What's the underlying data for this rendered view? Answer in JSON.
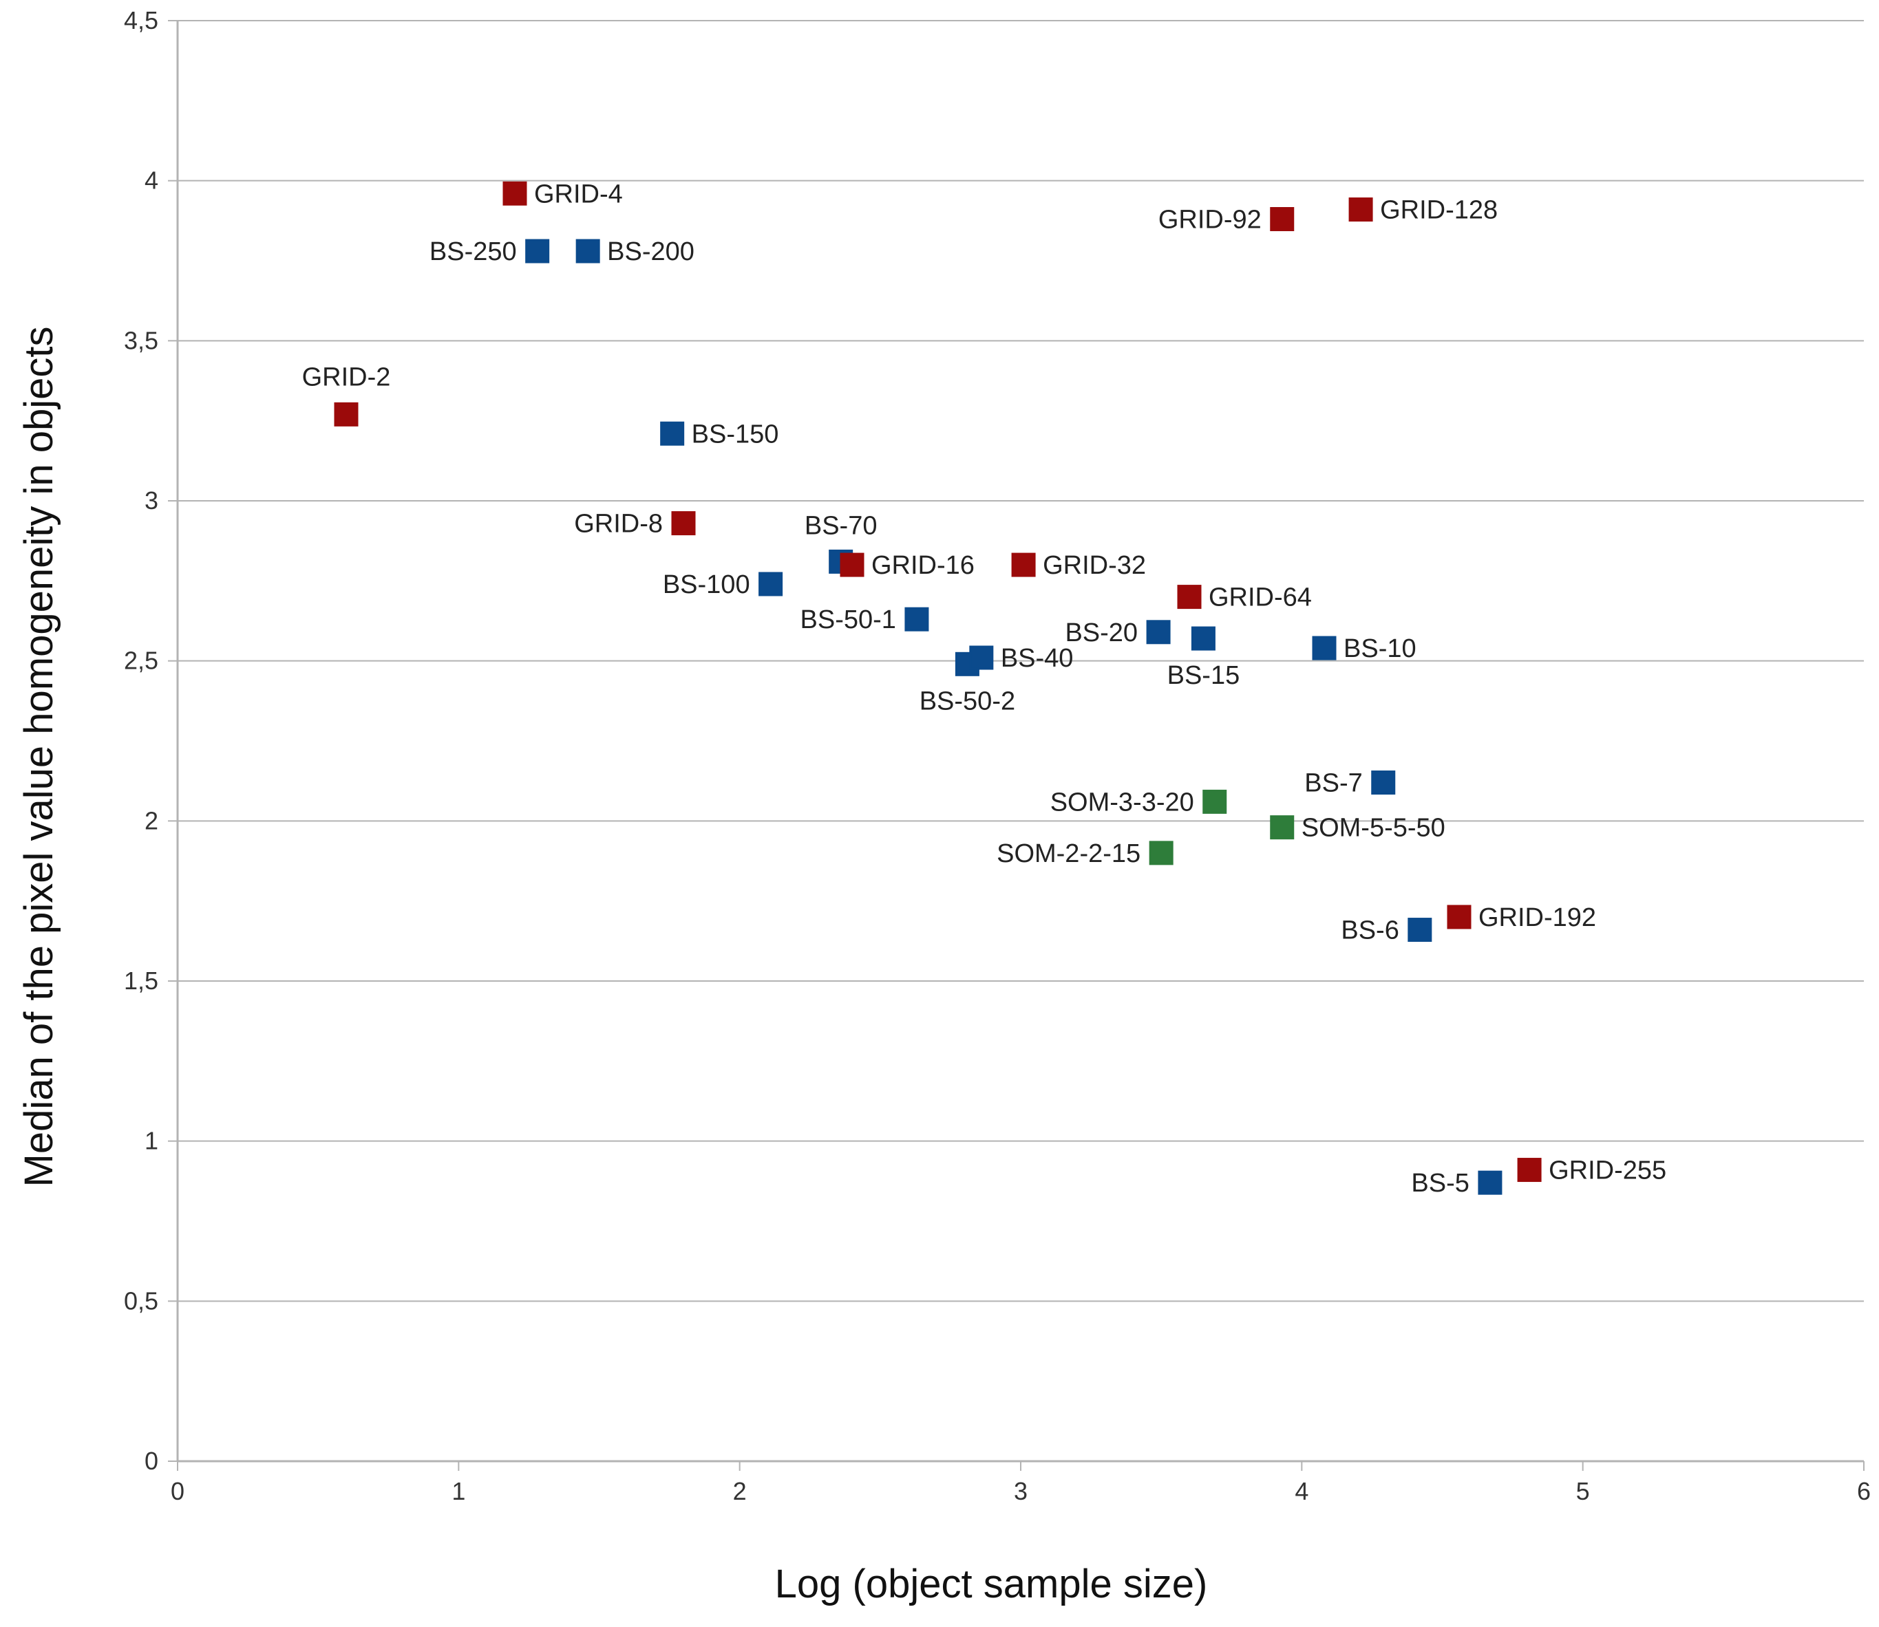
{
  "chart_data": {
    "type": "scatter",
    "title": "",
    "xlabel": "Log (object sample size)",
    "ylabel": "Median of the pixel value homogeneity in objects",
    "xlim": [
      0,
      6
    ],
    "ylim": [
      0,
      4.5
    ],
    "x_ticks": [
      "0",
      "1",
      "2",
      "3",
      "4",
      "5",
      "6"
    ],
    "y_ticks": [
      "0",
      "0,5",
      "1",
      "1,5",
      "2",
      "2,5",
      "3",
      "3,5",
      "4",
      "4,5"
    ],
    "grid": "horizontal",
    "legend": "none",
    "colors": {
      "GRID": "#9b0a0a",
      "BS": "#0b4a8c",
      "SOM": "#2e7d3a"
    },
    "points": [
      {
        "label": "GRID-2",
        "group": "GRID",
        "x": 0.6,
        "y": 3.27
      },
      {
        "label": "GRID-4",
        "group": "GRID",
        "x": 1.2,
        "y": 3.96
      },
      {
        "label": "BS-250",
        "group": "BS",
        "x": 1.28,
        "y": 3.78
      },
      {
        "label": "BS-200",
        "group": "BS",
        "x": 1.46,
        "y": 3.78
      },
      {
        "label": "BS-150",
        "group": "BS",
        "x": 1.76,
        "y": 3.21
      },
      {
        "label": "GRID-8",
        "group": "GRID",
        "x": 1.8,
        "y": 2.93
      },
      {
        "label": "BS-100",
        "group": "BS",
        "x": 2.11,
        "y": 2.74
      },
      {
        "label": "BS-70",
        "group": "BS",
        "x": 2.36,
        "y": 2.81
      },
      {
        "label": "GRID-16",
        "group": "GRID",
        "x": 2.4,
        "y": 2.8
      },
      {
        "label": "BS-50-1",
        "group": "BS",
        "x": 2.63,
        "y": 2.63
      },
      {
        "label": "BS-50-2",
        "group": "BS",
        "x": 2.81,
        "y": 2.49
      },
      {
        "label": "BS-40",
        "group": "BS",
        "x": 2.86,
        "y": 2.51
      },
      {
        "label": "GRID-32",
        "group": "GRID",
        "x": 3.01,
        "y": 2.8
      },
      {
        "label": "BS-20",
        "group": "BS",
        "x": 3.49,
        "y": 2.59
      },
      {
        "label": "SOM-2-2-15",
        "group": "SOM",
        "x": 3.5,
        "y": 1.9
      },
      {
        "label": "GRID-64",
        "group": "GRID",
        "x": 3.6,
        "y": 2.7
      },
      {
        "label": "BS-15",
        "group": "BS",
        "x": 3.65,
        "y": 2.57
      },
      {
        "label": "SOM-3-3-20",
        "group": "SOM",
        "x": 3.69,
        "y": 2.06
      },
      {
        "label": "GRID-92",
        "group": "GRID",
        "x": 3.93,
        "y": 3.88
      },
      {
        "label": "SOM-5-5-50",
        "group": "SOM",
        "x": 3.93,
        "y": 1.98
      },
      {
        "label": "BS-10",
        "group": "BS",
        "x": 4.08,
        "y": 2.54
      },
      {
        "label": "GRID-128",
        "group": "GRID",
        "x": 4.21,
        "y": 3.91
      },
      {
        "label": "BS-7",
        "group": "BS",
        "x": 4.29,
        "y": 2.12
      },
      {
        "label": "BS-6",
        "group": "BS",
        "x": 4.42,
        "y": 1.66
      },
      {
        "label": "GRID-192",
        "group": "GRID",
        "x": 4.56,
        "y": 1.7
      },
      {
        "label": "BS-5",
        "group": "BS",
        "x": 4.67,
        "y": 0.87
      },
      {
        "label": "GRID-255",
        "group": "GRID",
        "x": 4.81,
        "y": 0.91
      }
    ]
  }
}
